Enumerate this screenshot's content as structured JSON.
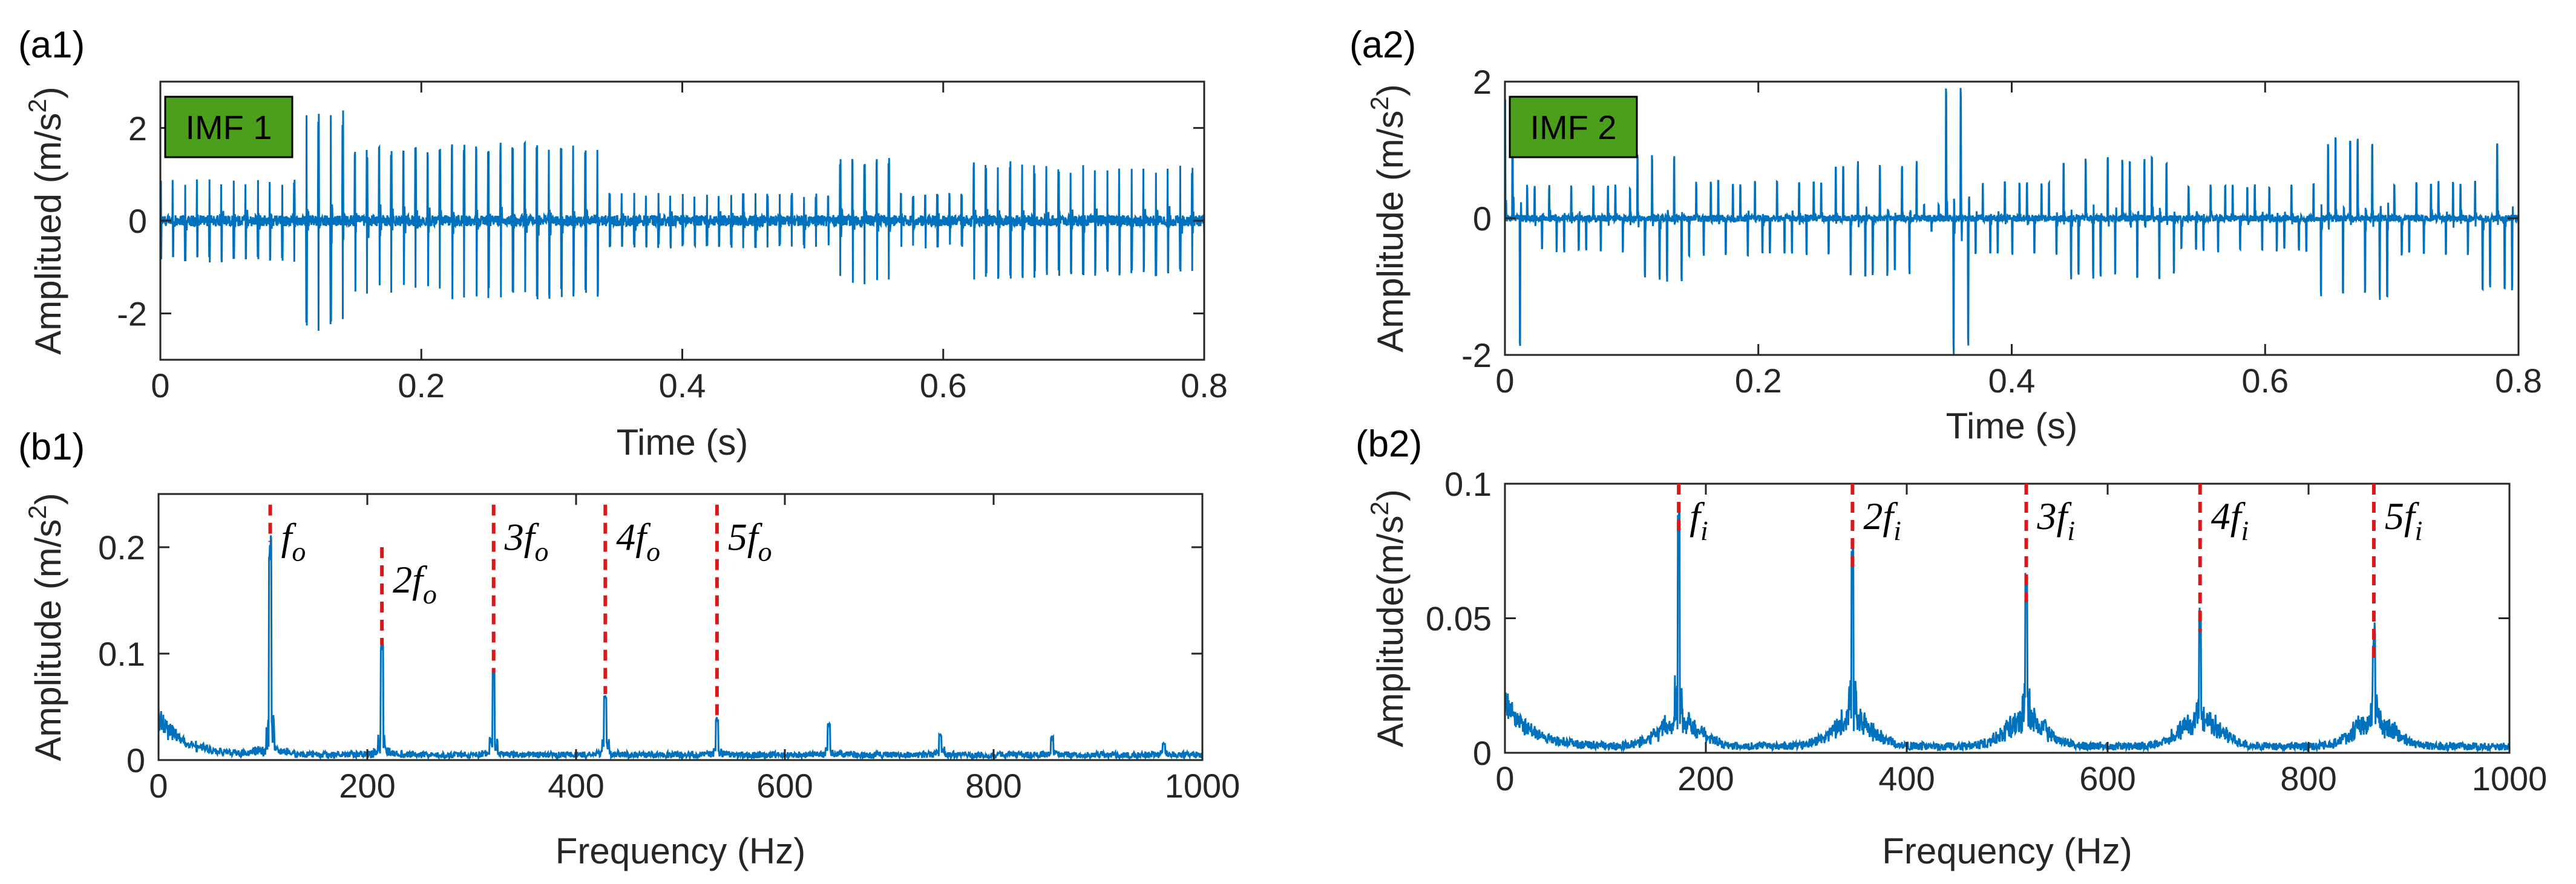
{
  "colors": {
    "signal": "#0072BD",
    "marker": "#D7191C",
    "badge": "#4C9F1C",
    "axis": "#262626"
  },
  "chart_data": [
    {
      "id": "a1",
      "type": "line",
      "panel_label": "(a1)",
      "badge": "IMF 1",
      "xlabel": "Time (s)",
      "ylabel": "Amplitued (m/s^2)",
      "ylabel_main": "Amplitued (m/s",
      "ylabel_sup": "2",
      "ylabel_tail": ")",
      "xlim": [
        0,
        0.8
      ],
      "ylim": [
        -3,
        3
      ],
      "xticks": [
        0,
        0.2,
        0.4,
        0.6,
        0.8
      ],
      "xtick_labels": [
        "0",
        "0.2",
        "0.4",
        "0.6",
        "0.8"
      ],
      "yticks": [
        -2,
        0,
        2
      ],
      "ytick_labels": [
        "-2",
        "0",
        "2"
      ],
      "signal": {
        "kind": "impulse_train",
        "noise": 0.12,
        "segments": [
          {
            "t0": 0.0,
            "t1": 0.11,
            "amp": 0.9
          },
          {
            "t0": 0.11,
            "t1": 0.145,
            "amp": 2.4
          },
          {
            "t0": 0.145,
            "t1": 0.21,
            "amp": 1.6
          },
          {
            "t0": 0.21,
            "t1": 0.34,
            "amp": 1.7
          },
          {
            "t0": 0.34,
            "t1": 0.52,
            "amp": 0.6
          },
          {
            "t0": 0.52,
            "t1": 0.56,
            "amp": 1.4
          },
          {
            "t0": 0.56,
            "t1": 0.62,
            "amp": 0.6
          },
          {
            "t0": 0.62,
            "t1": 0.67,
            "amp": 1.3
          },
          {
            "t0": 0.67,
            "t1": 0.8,
            "amp": 1.2
          }
        ],
        "period": 0.0093
      }
    },
    {
      "id": "a2",
      "type": "line",
      "panel_label": "(a2)",
      "badge": "IMF 2",
      "xlabel": "Time (s)",
      "ylabel": "Amplitude (m/s^2)",
      "ylabel_main": "Amplitude (m/s",
      "ylabel_sup": "2",
      "ylabel_tail": ")",
      "xlim": [
        0,
        0.8
      ],
      "ylim": [
        -2,
        2
      ],
      "xticks": [
        0,
        0.2,
        0.4,
        0.6,
        0.8
      ],
      "xtick_labels": [
        "0",
        "0.2",
        "0.4",
        "0.6",
        "0.8"
      ],
      "yticks": [
        -2,
        0,
        2
      ],
      "ytick_labels": [
        "-2",
        "0",
        "2"
      ],
      "signal": {
        "kind": "impulse_train",
        "noise": 0.05,
        "segments": [
          {
            "t0": 0.0,
            "t1": 0.015,
            "amp": 1.9
          },
          {
            "t0": 0.015,
            "t1": 0.1,
            "amp": 0.5
          },
          {
            "t0": 0.1,
            "t1": 0.14,
            "amp": 0.95
          },
          {
            "t0": 0.14,
            "t1": 0.26,
            "amp": 0.55
          },
          {
            "t0": 0.26,
            "t1": 0.33,
            "amp": 0.85
          },
          {
            "t0": 0.33,
            "t1": 0.345,
            "amp": 0.2
          },
          {
            "t0": 0.345,
            "t1": 0.37,
            "amp": 2.0
          },
          {
            "t0": 0.37,
            "t1": 0.44,
            "amp": 0.55
          },
          {
            "t0": 0.44,
            "t1": 0.53,
            "amp": 0.9
          },
          {
            "t0": 0.53,
            "t1": 0.64,
            "amp": 0.5
          },
          {
            "t0": 0.64,
            "t1": 0.7,
            "amp": 1.2
          },
          {
            "t0": 0.7,
            "t1": 0.77,
            "amp": 0.55
          },
          {
            "t0": 0.77,
            "t1": 0.8,
            "amp": 1.1
          }
        ],
        "period": 0.0058
      }
    },
    {
      "id": "b1",
      "type": "line",
      "panel_label": "(b1)",
      "xlabel": "Frequency (Hz)",
      "ylabel": "Amplitude (m/s^2)",
      "ylabel_main": "Amplitude (m/s",
      "ylabel_sup": "2",
      "ylabel_tail": ")",
      "xlim": [
        0,
        1000
      ],
      "ylim": [
        0,
        0.25
      ],
      "xticks": [
        0,
        200,
        400,
        600,
        800,
        1000
      ],
      "xtick_labels": [
        "0",
        "200",
        "400",
        "600",
        "800",
        "1000"
      ],
      "yticks": [
        0,
        0.1,
        0.2
      ],
      "ytick_labels": [
        "0",
        "0.1",
        "0.2"
      ],
      "spectrum": {
        "floor": 0.006,
        "low_freq_peak": 0.045,
        "peaks": [
          {
            "f": 107,
            "amp": 0.205
          },
          {
            "f": 214,
            "amp": 0.108
          },
          {
            "f": 321,
            "amp": 0.082
          },
          {
            "f": 428,
            "amp": 0.062
          },
          {
            "f": 535,
            "amp": 0.04
          },
          {
            "f": 642,
            "amp": 0.035
          },
          {
            "f": 749,
            "amp": 0.024
          },
          {
            "f": 856,
            "amp": 0.022
          },
          {
            "f": 963,
            "amp": 0.016
          }
        ]
      },
      "markers": [
        {
          "f": 107,
          "y_top": 0.24,
          "y_bottom": 0.205,
          "label": "f",
          "sub": "o",
          "prefix": ""
        },
        {
          "f": 214,
          "y_top": 0.2,
          "y_bottom": 0.108,
          "label": "f",
          "sub": "o",
          "prefix": "2"
        },
        {
          "f": 321,
          "y_top": 0.24,
          "y_bottom": 0.082,
          "label": "f",
          "sub": "o",
          "prefix": "3"
        },
        {
          "f": 428,
          "y_top": 0.24,
          "y_bottom": 0.062,
          "label": "f",
          "sub": "o",
          "prefix": "4"
        },
        {
          "f": 535,
          "y_top": 0.24,
          "y_bottom": 0.04,
          "label": "f",
          "sub": "o",
          "prefix": "5"
        }
      ]
    },
    {
      "id": "b2",
      "type": "line",
      "panel_label": "(b2)",
      "xlabel": "Frequency (Hz)",
      "ylabel": "Amplitude(m/s^2)",
      "ylabel_main": "Amplitude(m/s",
      "ylabel_sup": "2",
      "ylabel_tail": ")",
      "xlim": [
        0,
        1000
      ],
      "ylim": [
        0,
        0.1
      ],
      "xticks": [
        0,
        200,
        400,
        600,
        800,
        1000
      ],
      "xtick_labels": [
        "0",
        "200",
        "400",
        "600",
        "800",
        "1000"
      ],
      "yticks": [
        0,
        0.05,
        0.1
      ],
      "ytick_labels": [
        "0",
        "0.05",
        "0.1"
      ],
      "spectrum": {
        "floor": 0.003,
        "low_freq_peak": 0.022,
        "peaks": [
          {
            "f": 173,
            "amp": 0.08
          },
          {
            "f": 346,
            "amp": 0.068
          },
          {
            "f": 519,
            "amp": 0.056
          },
          {
            "f": 692,
            "amp": 0.045
          },
          {
            "f": 865,
            "amp": 0.035
          }
        ],
        "hump": 0.012
      },
      "markers": [
        {
          "f": 173,
          "y_top": 0.1,
          "y_bottom": 0.08,
          "label": "f",
          "sub": "i",
          "prefix": ""
        },
        {
          "f": 346,
          "y_top": 0.1,
          "y_bottom": 0.068,
          "label": "f",
          "sub": "i",
          "prefix": "2"
        },
        {
          "f": 519,
          "y_top": 0.1,
          "y_bottom": 0.056,
          "label": "f",
          "sub": "i",
          "prefix": "3"
        },
        {
          "f": 692,
          "y_top": 0.1,
          "y_bottom": 0.045,
          "label": "f",
          "sub": "i",
          "prefix": "4"
        },
        {
          "f": 865,
          "y_top": 0.1,
          "y_bottom": 0.035,
          "label": "f",
          "sub": "i",
          "prefix": "5"
        }
      ]
    }
  ]
}
